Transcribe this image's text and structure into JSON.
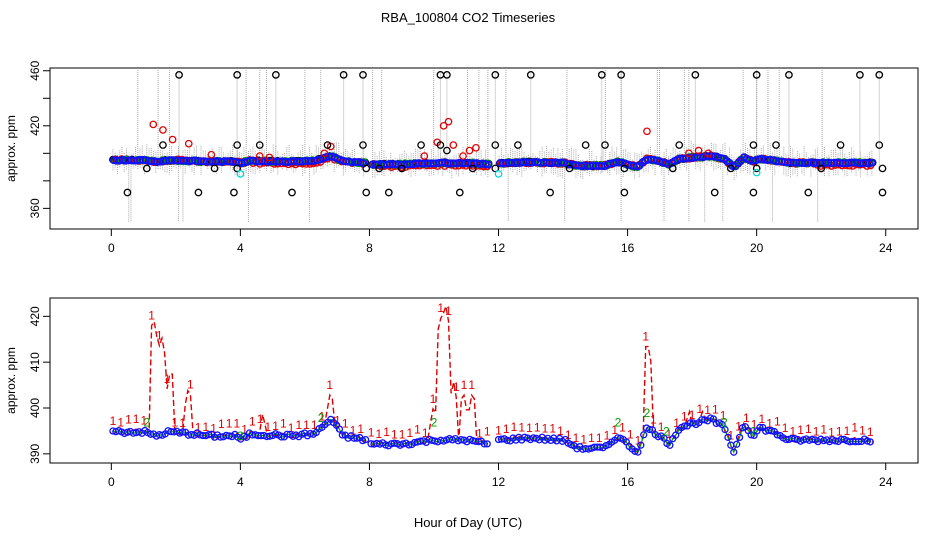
{
  "title": "RBA_100804  CO2 Timeseries",
  "xlabel": "Hour of Day (UTC)",
  "colors": {
    "black": "#000000",
    "red": "#e00000",
    "green": "#00a000",
    "blue": "#1010ff",
    "cyan": "#00d8d8",
    "grey": "#a8a8a8"
  },
  "chart_data": [
    {
      "type": "scatter",
      "name": "top-panel",
      "ylabel": "approx. ppm",
      "xlim": [
        -1.9,
        25
      ],
      "ylim": [
        345,
        462
      ],
      "xticks": [
        0,
        4,
        8,
        12,
        16,
        20,
        24
      ],
      "yticks": [
        360,
        380,
        400,
        420,
        440,
        460
      ],
      "ytick_labels": [
        "360",
        "",
        "",
        "420",
        "",
        "460"
      ],
      "baseline_segments": [
        [
          [
            0.05,
            395
          ],
          [
            1.0,
            395
          ],
          [
            1.4,
            394
          ],
          [
            1.8,
            395
          ],
          [
            2.5,
            394.5
          ],
          [
            3.0,
            394
          ],
          [
            3.9,
            394
          ],
          [
            4.0,
            393
          ],
          [
            4.3,
            394.5
          ],
          [
            5.5,
            394
          ],
          [
            6.3,
            394.5
          ],
          [
            6.8,
            398
          ],
          [
            7.2,
            394
          ],
          [
            7.9,
            393
          ]
        ],
        [
          [
            8.05,
            392
          ],
          [
            9.0,
            392
          ],
          [
            10.0,
            393
          ],
          [
            11.0,
            393
          ],
          [
            11.7,
            392
          ]
        ],
        [
          [
            12.0,
            393
          ],
          [
            13.0,
            393.5
          ],
          [
            14.0,
            393
          ],
          [
            14.5,
            391
          ],
          [
            15.3,
            391
          ],
          [
            15.7,
            394
          ],
          [
            16.0,
            392
          ],
          [
            16.3,
            390
          ],
          [
            16.6,
            396
          ],
          [
            17.0,
            394
          ],
          [
            17.3,
            392
          ],
          [
            17.6,
            396
          ],
          [
            18.0,
            397
          ],
          [
            18.6,
            398
          ],
          [
            19.0,
            396
          ],
          [
            19.3,
            390
          ],
          [
            19.6,
            397
          ],
          [
            19.9,
            394
          ],
          [
            20.1,
            396
          ],
          [
            20.5,
            395
          ],
          [
            21.0,
            393
          ],
          [
            22.0,
            393
          ],
          [
            23.0,
            393
          ],
          [
            23.6,
            393
          ]
        ]
      ],
      "red_spikes": [
        [
          1.3,
          421
        ],
        [
          1.6,
          417
        ],
        [
          1.9,
          410
        ],
        [
          2.4,
          407
        ],
        [
          3.1,
          399
        ],
        [
          4.6,
          398
        ],
        [
          4.9,
          397
        ],
        [
          6.6,
          400
        ],
        [
          6.8,
          405
        ],
        [
          9.7,
          398
        ],
        [
          10.1,
          408
        ],
        [
          10.3,
          420
        ],
        [
          10.45,
          423
        ],
        [
          10.6,
          406
        ],
        [
          10.9,
          398
        ],
        [
          11.1,
          402
        ],
        [
          11.3,
          404
        ],
        [
          16.6,
          416
        ],
        [
          17.9,
          400
        ],
        [
          18.2,
          402
        ],
        [
          18.5,
          400
        ]
      ],
      "black_high": [
        2.1,
        3.9,
        5.1,
        7.2,
        7.8,
        10.2,
        10.4,
        11.9,
        13.0,
        15.2,
        15.8,
        18.1,
        20.0,
        21.0,
        23.2,
        23.8
      ],
      "black_low": [
        0.5,
        2.7,
        3.8,
        5.6,
        7.9,
        8.6,
        10.8,
        13.6,
        15.9,
        18.7,
        19.9,
        21.6,
        23.9
      ],
      "black_mid": [
        [
          1.6,
          406
        ],
        [
          3.9,
          406
        ],
        [
          4.6,
          406
        ],
        [
          6.7,
          406
        ],
        [
          7.8,
          406
        ],
        [
          9.6,
          406
        ],
        [
          10.2,
          406
        ],
        [
          10.4,
          402
        ],
        [
          11.9,
          406
        ],
        [
          12.6,
          406
        ],
        [
          14.7,
          406
        ],
        [
          15.3,
          406
        ],
        [
          17.6,
          406
        ],
        [
          19.9,
          406
        ],
        [
          20.6,
          406
        ],
        [
          22.6,
          406
        ],
        [
          23.8,
          406
        ],
        [
          1.1,
          389
        ],
        [
          3.2,
          389
        ],
        [
          3.9,
          389
        ],
        [
          7.9,
          389
        ],
        [
          8.3,
          389
        ],
        [
          9.0,
          389
        ],
        [
          11.2,
          389
        ],
        [
          11.9,
          389
        ],
        [
          14.2,
          389
        ],
        [
          15.9,
          389
        ],
        [
          17.4,
          389
        ],
        [
          19.2,
          389
        ],
        [
          20.0,
          389
        ],
        [
          22.0,
          389
        ],
        [
          23.9,
          389
        ]
      ],
      "cyan_points": [
        [
          4.0,
          385
        ],
        [
          12.0,
          385
        ],
        [
          20.0,
          386
        ]
      ]
    },
    {
      "type": "line",
      "name": "bottom-panel",
      "ylabel": "approx. ppm",
      "xlim": [
        -1.9,
        25
      ],
      "ylim": [
        388,
        424
      ],
      "xticks": [
        0,
        4,
        8,
        12,
        16,
        20,
        24
      ],
      "yticks": [
        390,
        400,
        410,
        420
      ],
      "red_peaks": [
        [
          1.3,
          420
        ],
        [
          1.55,
          416
        ],
        [
          1.85,
          409
        ],
        [
          2.4,
          405
        ],
        [
          4.7,
          399
        ],
        [
          6.8,
          404
        ],
        [
          10.0,
          401
        ],
        [
          10.2,
          420
        ],
        [
          10.35,
          423
        ],
        [
          10.6,
          406
        ],
        [
          10.9,
          404
        ],
        [
          11.2,
          404
        ],
        [
          16.6,
          415
        ],
        [
          17.9,
          400
        ],
        [
          18.3,
          400
        ],
        [
          18.6,
          399
        ]
      ],
      "green_labels": [
        [
          1.1,
          396
        ],
        [
          4.0,
          393
        ],
        [
          6.5,
          397
        ],
        [
          10.0,
          396
        ],
        [
          15.7,
          396
        ],
        [
          16.6,
          398
        ],
        [
          17.2,
          394
        ],
        [
          19.0,
          396
        ],
        [
          19.9,
          394
        ]
      ]
    }
  ]
}
